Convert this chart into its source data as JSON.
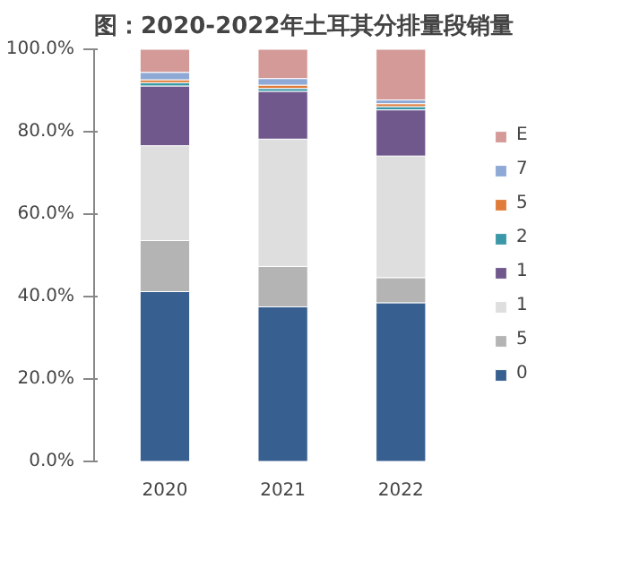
{
  "chart_data": {
    "type": "bar",
    "stacked": true,
    "title": "图：2020-2022年土耳其分排量段销量",
    "categories": [
      "2020",
      "2021",
      "2022"
    ],
    "series": [
      {
        "name": "0",
        "color": "#375f8f",
        "values": [
          41.2,
          37.5,
          38.5
        ]
      },
      {
        "name": "5",
        "color": "#b4b4b4",
        "values": [
          12.4,
          9.8,
          6.1
        ]
      },
      {
        "name": "1",
        "color": "#dedede",
        "values": [
          23.0,
          30.9,
          29.5
        ]
      },
      {
        "name": "1",
        "color": "#70588d",
        "values": [
          14.5,
          11.6,
          11.2
        ]
      },
      {
        "name": "2",
        "color": "#3a98a8",
        "values": [
          0.8,
          0.7,
          0.8
        ]
      },
      {
        "name": "5",
        "color": "#e07b39",
        "values": [
          0.7,
          0.8,
          0.7
        ]
      },
      {
        "name": "7",
        "color": "#8ea9d6",
        "values": [
          1.8,
          1.6,
          0.9
        ]
      },
      {
        "name": "E",
        "color": "#d49a98",
        "values": [
          5.6,
          7.1,
          12.3
        ]
      }
    ],
    "ylim": [
      0,
      100
    ],
    "yticks": [
      {
        "value": 0,
        "label": "0.0%"
      },
      {
        "value": 20,
        "label": "20.0%"
      },
      {
        "value": 40,
        "label": "40.0%"
      },
      {
        "value": 60,
        "label": "60.0%"
      },
      {
        "value": 80,
        "label": "80.0%"
      },
      {
        "value": 100,
        "label": "100.0%"
      }
    ],
    "grid": false,
    "legend": "right"
  }
}
